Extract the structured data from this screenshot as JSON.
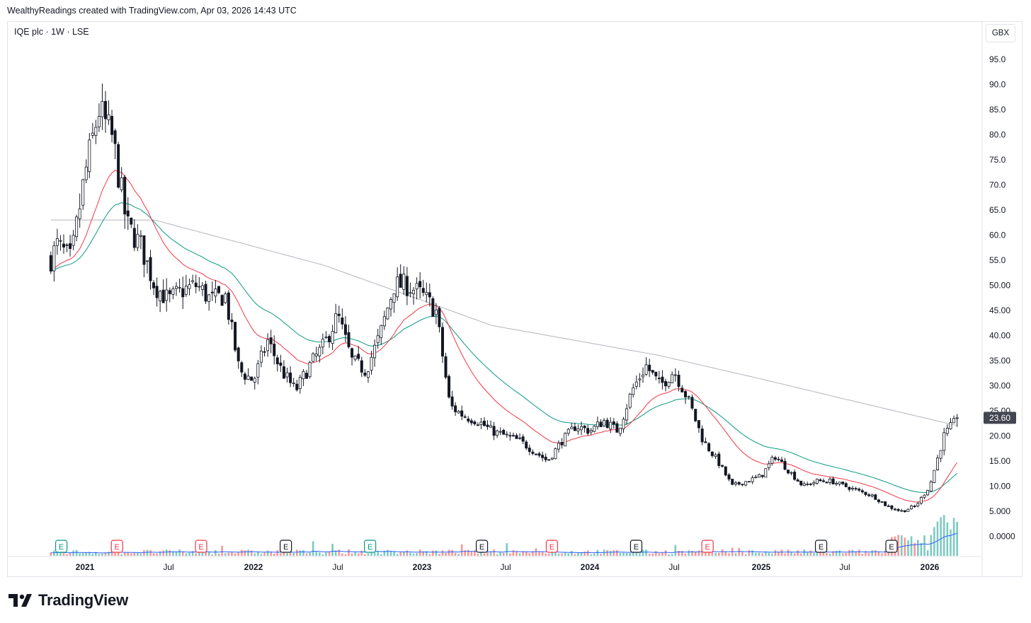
{
  "header": {
    "credit": "WealthyReadings created with TradingView.com, Apr 03, 2026 14:43 UTC"
  },
  "chart_data": {
    "type": "candlestick",
    "title": "IQE plc · 1W · LSE",
    "currency": "GBX",
    "last_price": "23.60",
    "y_ticks": [
      "95.0",
      "90.0",
      "85.0",
      "80.0",
      "75.0",
      "70.0",
      "65.0",
      "60.0",
      "55.0",
      "50.00",
      "45.00",
      "40.00",
      "35.00",
      "30.00",
      "25.00",
      "20.00",
      "15.00",
      "10.00",
      "5.000",
      "0.0000"
    ],
    "ylim": [
      0,
      100
    ],
    "x_ticks": [
      "2021",
      "Jul",
      "2022",
      "Jul",
      "2023",
      "Jul",
      "2024",
      "Jul",
      "2025",
      "Jul",
      "2026"
    ],
    "price_anchors": [
      [
        "2020-10",
        52
      ],
      [
        "2020-11",
        58
      ],
      [
        "2020-12",
        55
      ],
      [
        "2021-01",
        72
      ],
      [
        "2021-02",
        85
      ],
      [
        "2021-03",
        79
      ],
      [
        "2021-04",
        62
      ],
      [
        "2021-05",
        58
      ],
      [
        "2021-06",
        50
      ],
      [
        "2021-07",
        47
      ],
      [
        "2021-08",
        49
      ],
      [
        "2021-09",
        50
      ],
      [
        "2021-10",
        47
      ],
      [
        "2021-11",
        48
      ],
      [
        "2021-12",
        33
      ],
      [
        "2022-01",
        31
      ],
      [
        "2022-02",
        39
      ],
      [
        "2022-03",
        33
      ],
      [
        "2022-04",
        29
      ],
      [
        "2022-05",
        34
      ],
      [
        "2022-06",
        38
      ],
      [
        "2022-07",
        44
      ],
      [
        "2022-08",
        35
      ],
      [
        "2022-09",
        33
      ],
      [
        "2022-10",
        40
      ],
      [
        "2022-11",
        50
      ],
      [
        "2022-12",
        50
      ],
      [
        "2023-01",
        48
      ],
      [
        "2023-02",
        45
      ],
      [
        "2023-03",
        26
      ],
      [
        "2023-04",
        24
      ],
      [
        "2023-05",
        23
      ],
      [
        "2023-06",
        21
      ],
      [
        "2023-07",
        20
      ],
      [
        "2023-08",
        19
      ],
      [
        "2023-09",
        17
      ],
      [
        "2023-10",
        15
      ],
      [
        "2023-11",
        19
      ],
      [
        "2023-12",
        22
      ],
      [
        "2024-01",
        21
      ],
      [
        "2024-02",
        23
      ],
      [
        "2024-03",
        21
      ],
      [
        "2024-04",
        29
      ],
      [
        "2024-05",
        34
      ],
      [
        "2024-06",
        30
      ],
      [
        "2024-07",
        33
      ],
      [
        "2024-08",
        27
      ],
      [
        "2024-09",
        19
      ],
      [
        "2024-10",
        15
      ],
      [
        "2024-11",
        10
      ],
      [
        "2024-12",
        11
      ],
      [
        "2025-01",
        12
      ],
      [
        "2025-02",
        16
      ],
      [
        "2025-03",
        13
      ],
      [
        "2025-04",
        10
      ],
      [
        "2025-05",
        11
      ],
      [
        "2025-06",
        11
      ],
      [
        "2025-07",
        10
      ],
      [
        "2025-08",
        9
      ],
      [
        "2025-09",
        8
      ],
      [
        "2025-10",
        6
      ],
      [
        "2025-11",
        5
      ],
      [
        "2025-12",
        6
      ],
      [
        "2026-01",
        10
      ],
      [
        "2026-02",
        20
      ],
      [
        "2026-03",
        23.6
      ]
    ],
    "ma_200": [
      [
        "2020-10",
        63
      ],
      [
        "2021-06",
        63
      ],
      [
        "2022-06",
        54
      ],
      [
        "2023-06",
        42
      ],
      [
        "2024-06",
        36
      ],
      [
        "2025-06",
        28
      ],
      [
        "2026-03",
        22
      ]
    ],
    "events": [
      {
        "label": "E",
        "date": "2020-11",
        "type": "green"
      },
      {
        "label": "E",
        "date": "2021-03",
        "type": "red"
      },
      {
        "label": "E",
        "date": "2021-09",
        "type": "red"
      },
      {
        "label": "E",
        "date": "2022-03",
        "type": "black"
      },
      {
        "label": "E",
        "date": "2022-09",
        "type": "green"
      },
      {
        "label": "E",
        "date": "2023-05",
        "type": "black"
      },
      {
        "label": "E",
        "date": "2023-10",
        "type": "red"
      },
      {
        "label": "E",
        "date": "2024-04",
        "type": "black"
      },
      {
        "label": "E",
        "date": "2024-09",
        "type": "red"
      },
      {
        "label": "E",
        "date": "2025-05",
        "type": "black"
      },
      {
        "label": "E",
        "date": "2025-10",
        "type": "black"
      }
    ],
    "colors": {
      "up": "#ffffff",
      "down": "#131722",
      "wick": "#131722",
      "ma_fast": "#f23645",
      "ma_mid": "#089981",
      "ma_slow": "#b2b5be",
      "vol_up": "#26a69a",
      "vol_down": "#ef5350",
      "vol_ma": "#2962ff",
      "last_price_bg": "#434651"
    }
  },
  "brand": {
    "name": "TradingView"
  }
}
